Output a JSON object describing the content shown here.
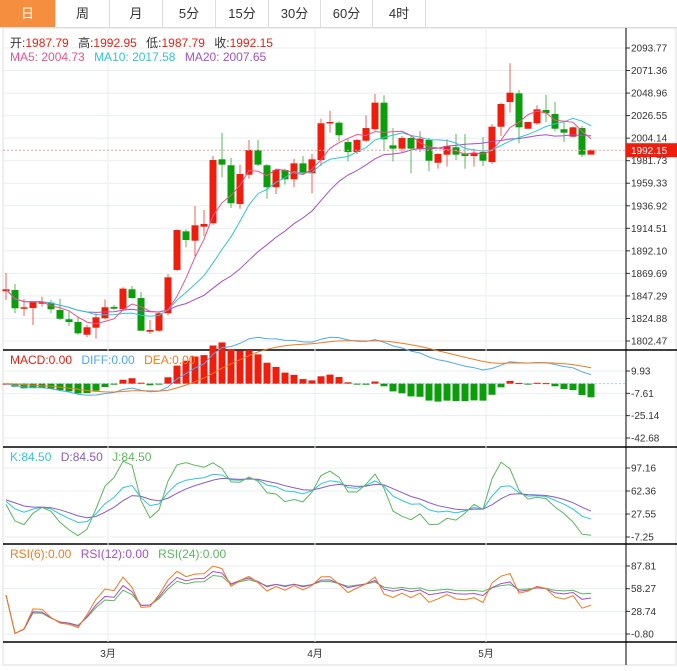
{
  "tabs": [
    "日",
    "周",
    "月",
    "5分",
    "15分",
    "30分",
    "60分",
    "4时"
  ],
  "active_tab": 0,
  "ohlc_legend": {
    "open_label": "开:",
    "open": "1987.79",
    "high_label": "高:",
    "high": "1992.95",
    "low_label": "低:",
    "low": "1987.79",
    "close_label": "收:",
    "close": "1992.15"
  },
  "ma_legend": {
    "ma5": "MA5: 2004.73",
    "ma10": "MA10: 2017.58",
    "ma20": "MA20: 2007.65"
  },
  "macd_legend": {
    "macd": "MACD:0.00",
    "diff": "DIFF:0.00",
    "dea": "DEA:0.00"
  },
  "kdj_legend": {
    "k": "K:84.50",
    "d": "D:84.50",
    "j": "J:84.50"
  },
  "rsi_legend": {
    "rsi6": "RSI(6):0.00",
    "rsi12": "RSI(12):0.00",
    "rsi24": "RSI(24):0.00"
  },
  "current_price": "1992.15",
  "colors": {
    "up": "#f01c0c",
    "down": "#0a9e0a",
    "ma5": "#f0508a",
    "ma10": "#2ec7d8",
    "ma20": "#a64fc9",
    "tab_active": "#f58f3f",
    "diff": "#4fa8f0",
    "dea": "#f47a1f",
    "k": "#2ec7d8",
    "d": "#8a5cc9",
    "j": "#5cb85c",
    "rsi6": "#f47a1f",
    "rsi12": "#a64fc9",
    "rsi24": "#5cb85c"
  },
  "chart_data": {
    "type": "candlestick",
    "price_axis_ticks": [
      "2093.77",
      "2071.36",
      "2048.96",
      "2026.55",
      "2004.14",
      "1981.73",
      "1959.33",
      "1936.92",
      "1914.51",
      "1892.10",
      "1869.69",
      "1847.29",
      "1824.88",
      "1802.47"
    ],
    "price_range": [
      1802.47,
      2093.77
    ],
    "macd_axis_ticks": [
      "9.93",
      "-7.61",
      "-25.14",
      "-42.68"
    ],
    "macd_range": [
      -42.68,
      9.93
    ],
    "kdj_axis_ticks": [
      "97.16",
      "62.36",
      "27.55",
      "-7.25"
    ],
    "kdj_range": [
      -7.25,
      97.16
    ],
    "rsi_axis_ticks": [
      "87.81",
      "58.27",
      "28.74",
      "-0.80"
    ],
    "rsi_range": [
      -0.8,
      87.81
    ],
    "x_labels": [
      {
        "label": "3月",
        "index": 11
      },
      {
        "label": "4月",
        "index": 34
      },
      {
        "label": "5月",
        "index": 53
      }
    ],
    "candles_ohlc": [
      [
        1851.9,
        1870.1,
        1843.2,
        1853.9
      ],
      [
        1853.2,
        1859.1,
        1830.0,
        1835.0
      ],
      [
        1834.6,
        1844.2,
        1827.3,
        1836.0
      ],
      [
        1835.3,
        1842.2,
        1818.4,
        1841.3
      ],
      [
        1839.6,
        1846.5,
        1836.6,
        1841.0
      ],
      [
        1840.6,
        1843.2,
        1830.0,
        1834.0
      ],
      [
        1833.3,
        1844.5,
        1823.4,
        1824.6
      ],
      [
        1824.1,
        1831.6,
        1817.4,
        1821.4
      ],
      [
        1821.4,
        1826.6,
        1808.7,
        1810.1
      ],
      [
        1808.7,
        1818.4,
        1806.2,
        1816.1
      ],
      [
        1815.7,
        1830.0,
        1804.8,
        1826.0
      ],
      [
        1825.1,
        1843.9,
        1824.1,
        1836.0
      ],
      [
        1836.3,
        1838.3,
        1833.3,
        1834.6
      ],
      [
        1834.0,
        1855.9,
        1832.6,
        1854.5
      ],
      [
        1853.9,
        1857.2,
        1844.5,
        1845.2
      ],
      [
        1845.2,
        1851.2,
        1812.7,
        1812.7
      ],
      [
        1811.7,
        1823.4,
        1809.4,
        1813.4
      ],
      [
        1812.7,
        1831.6,
        1811.7,
        1830.0
      ],
      [
        1830.0,
        1869.1,
        1828.0,
        1865.8
      ],
      [
        1873.1,
        1913.5,
        1872.4,
        1912.8
      ],
      [
        1911.5,
        1913.5,
        1895.6,
        1902.9
      ],
      [
        1902.2,
        1936.7,
        1887.0,
        1917.5
      ],
      [
        1916.1,
        1932.7,
        1906.9,
        1918.8
      ],
      [
        1919.5,
        1986.4,
        1918.1,
        1982.4
      ],
      [
        1983.1,
        2009.6,
        1965.2,
        1977.8
      ],
      [
        1977.2,
        1984.4,
        1934.7,
        1939.4
      ],
      [
        1938.7,
        1977.8,
        1934.0,
        1968.5
      ],
      [
        1967.8,
        2002.3,
        1963.8,
        1992.4
      ],
      [
        1992.4,
        2002.3,
        1976.5,
        1977.8
      ],
      [
        1977.2,
        1978.5,
        1944.0,
        1955.3
      ],
      [
        1955.3,
        1973.8,
        1948.6,
        1972.5
      ],
      [
        1972.5,
        1973.8,
        1957.9,
        1963.2
      ],
      [
        1963.2,
        1983.7,
        1955.3,
        1979.1
      ],
      [
        1979.1,
        1986.4,
        1967.8,
        1969.2
      ],
      [
        1969.2,
        1988.4,
        1949.3,
        1983.1
      ],
      [
        1982.4,
        2023.5,
        1976.5,
        2018.9
      ],
      [
        2018.9,
        2031.4,
        2009.6,
        2020.2
      ],
      [
        2019.5,
        2020.9,
        2001.0,
        2007.0
      ],
      [
        2000.3,
        2003.6,
        1981.1,
        1990.4
      ],
      [
        1990.4,
        2003.6,
        1988.4,
        2002.3
      ],
      [
        2001.6,
        2026.9,
        2000.3,
        2014.2
      ],
      [
        2013.0,
        2048.0,
        2011.6,
        2039.4
      ],
      [
        2039.4,
        2046.8,
        1991.7,
        2003.0
      ],
      [
        1997.0,
        2014.2,
        1981.1,
        1993.7
      ],
      [
        1993.7,
        2006.3,
        1990.4,
        2004.3
      ],
      [
        2004.3,
        2007.0,
        1969.2,
        1993.7
      ],
      [
        1993.1,
        2011.0,
        1990.4,
        2003.6
      ],
      [
        2002.3,
        2004.3,
        1971.2,
        1981.7
      ],
      [
        1979.7,
        1989.1,
        1973.8,
        1988.4
      ],
      [
        1987.7,
        2003.0,
        1975.8,
        1996.3
      ],
      [
        1995.1,
        2008.3,
        1982.4,
        1987.7
      ],
      [
        1989.1,
        2008.3,
        1973.8,
        1986.4
      ],
      [
        1986.4,
        1993.7,
        1975.8,
        1989.1
      ],
      [
        1990.4,
        2005.0,
        1976.5,
        1981.7
      ],
      [
        1980.4,
        2018.2,
        1978.5,
        2015.5
      ],
      [
        2015.5,
        2039.4,
        2006.3,
        2038.1
      ],
      [
        2040.1,
        2078.6,
        2029.5,
        2049.3
      ],
      [
        2048.7,
        2052.0,
        1999.0,
        2014.9
      ],
      [
        2013.5,
        2020.2,
        2013.5,
        2020.2
      ],
      [
        2018.9,
        2036.8,
        2017.5,
        2032.8
      ],
      [
        2032.1,
        2047.3,
        2020.2,
        2028.9
      ],
      [
        2028.2,
        2040.1,
        2011.0,
        2013.5
      ],
      [
        2013.0,
        2020.2,
        2000.3,
        2009.6
      ],
      [
        2005.6,
        2015.5,
        2005.0,
        2014.9
      ],
      [
        2014.2,
        2016.2,
        1985.1,
        1987.7
      ],
      [
        1987.79,
        1992.95,
        1987.79,
        1992.15
      ]
    ]
  }
}
